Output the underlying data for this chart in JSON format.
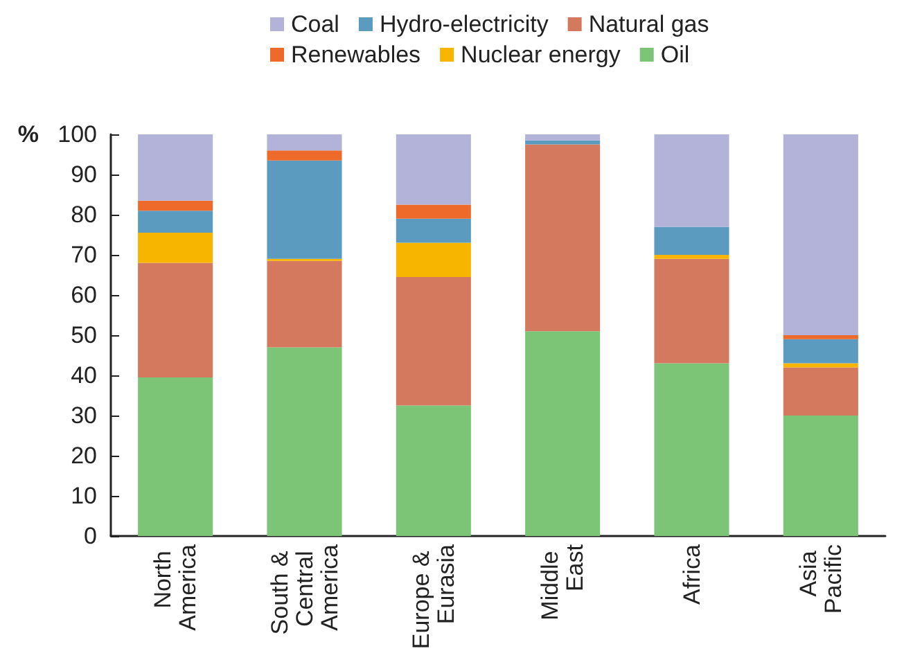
{
  "chart_data": {
    "type": "bar",
    "stacked": true,
    "ylabel": "%",
    "categories": [
      "North America",
      "South & Central America",
      "Europe & Eurasia",
      "Middle East",
      "Africa",
      "Asia Pacific"
    ],
    "series": [
      {
        "name": "Oil",
        "color": "#7cc576",
        "values": [
          39.5,
          47,
          32.5,
          51,
          43,
          30
        ]
      },
      {
        "name": "Natural gas",
        "color": "#d4785e",
        "values": [
          28.5,
          21.5,
          32,
          46.5,
          26,
          12
        ]
      },
      {
        "name": "Nuclear energy",
        "color": "#f7b500",
        "values": [
          7.5,
          0.5,
          8.5,
          0,
          1,
          1
        ]
      },
      {
        "name": "Hydro-electricity",
        "color": "#5a9bbf",
        "values": [
          5.5,
          24.5,
          6,
          1,
          7,
          6
        ]
      },
      {
        "name": "Renewables",
        "color": "#ee6a2a",
        "values": [
          2.5,
          2.5,
          3.5,
          0,
          0,
          1
        ]
      },
      {
        "name": "Coal",
        "color": "#b3b3d9",
        "values": [
          16.5,
          4,
          17.5,
          1.5,
          23,
          50
        ]
      }
    ],
    "ylim": [
      0,
      100
    ],
    "yticks": [
      0,
      10,
      20,
      30,
      40,
      50,
      60,
      70,
      80,
      90,
      100
    ],
    "grid": false,
    "legend": "top"
  }
}
